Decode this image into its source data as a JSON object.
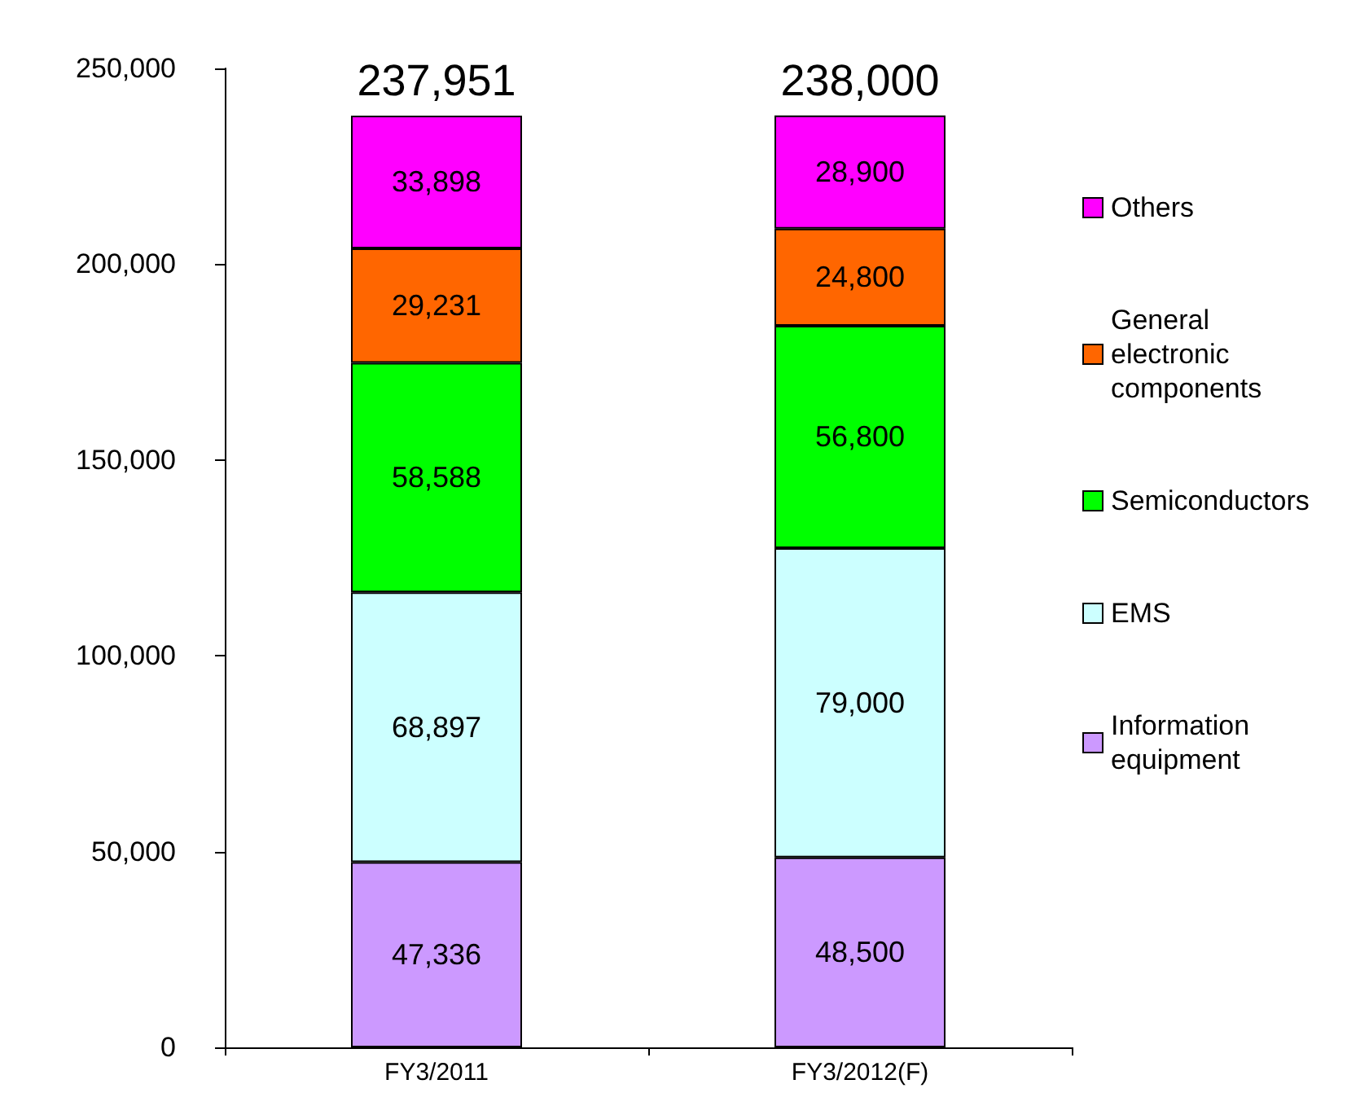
{
  "chart_data": {
    "type": "bar",
    "stacked": true,
    "categories": [
      "FY3/2011",
      "FY3/2012(F)"
    ],
    "series": [
      {
        "name": "Information equipment",
        "color": "#cc99ff",
        "values": [
          47336,
          48500
        ],
        "value_labels": [
          "47,336",
          "48,500"
        ]
      },
      {
        "name": "EMS",
        "color": "#ccffff",
        "values": [
          68897,
          79000
        ],
        "value_labels": [
          "68,897",
          "79,000"
        ]
      },
      {
        "name": "Semiconductors",
        "color": "#00ff00",
        "values": [
          58588,
          56800
        ],
        "value_labels": [
          "58,588",
          "56,800"
        ]
      },
      {
        "name": "General electronic components",
        "color": "#ff6600",
        "values": [
          29231,
          24800
        ],
        "value_labels": [
          "29,231",
          "24,800"
        ]
      },
      {
        "name": "Others",
        "color": "#ff00ff",
        "values": [
          33898,
          28900
        ],
        "value_labels": [
          "33,898",
          "28,900"
        ]
      }
    ],
    "ylim": [
      0,
      250000
    ],
    "yticks": [
      0,
      {
        "value": 50000,
        "label": "50,000"
      },
      {
        "value": 100000,
        "label": "100,000"
      },
      {
        "value": 150000,
        "label": "150,000"
      },
      {
        "value": 200000,
        "label": "200,000"
      },
      {
        "value": 250000,
        "label": "250,000"
      }
    ],
    "totals": [
      "237,951",
      "238,000"
    ],
    "legend": "right",
    "grid": false
  }
}
